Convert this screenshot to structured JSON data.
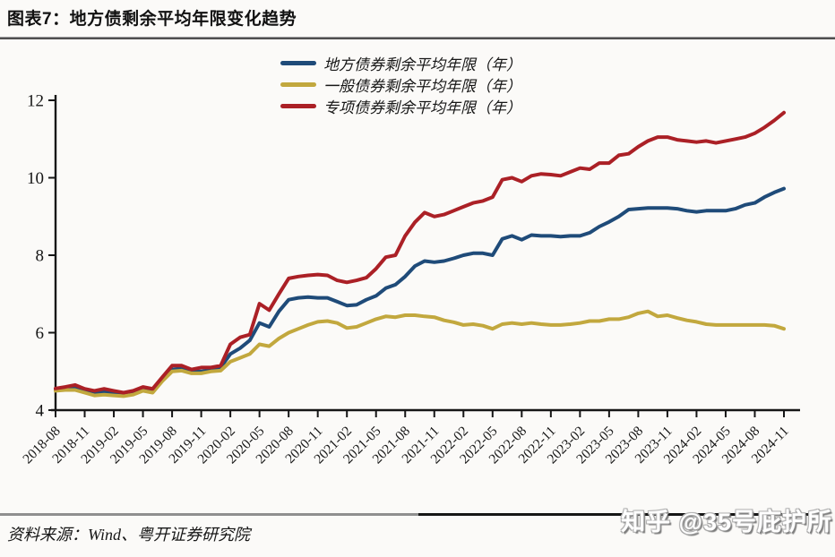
{
  "title": "图表7：地方债剩余平均年限变化趋势",
  "source_note": "资料来源：Wind、粤开证券研究院",
  "watermark": "知乎 @35号庇护所",
  "colors": {
    "series_local_blue": "#1f4b79",
    "series_general_yellow": "#c2a83e",
    "series_special_red": "#ab2026",
    "axis": "#161616",
    "title_rule": "#4f4f4f",
    "bottom_rule_gray": "#8f8f8f",
    "bottom_rule_black": "#161616"
  },
  "chart_data": {
    "type": "line",
    "title": "地方债剩余平均年限变化趋势",
    "xlabel": "",
    "ylabel": "",
    "ylim": [
      4,
      12
    ],
    "yticks": [
      4,
      6,
      8,
      10,
      12
    ],
    "grid": false,
    "legend_position": "top-center",
    "x_start": "2018-08",
    "x_end": "2024-11",
    "x_step_months": 1,
    "x_tick_labels": [
      "2018-08",
      "2018-11",
      "2019-02",
      "2019-05",
      "2019-08",
      "2019-11",
      "2020-02",
      "2020-05",
      "2020-08",
      "2020-11",
      "2021-02",
      "2021-05",
      "2021-08",
      "2021-11",
      "2022-02",
      "2022-05",
      "2022-08",
      "2022-11",
      "2023-02",
      "2023-05",
      "2023-08",
      "2023-11",
      "2024-02",
      "2024-05",
      "2024-08",
      "2024-11"
    ],
    "series": [
      {
        "name": "地方债券剩余平均年限（年）",
        "color": "#1f4b79",
        "values": [
          4.52,
          4.56,
          4.58,
          4.5,
          4.45,
          4.48,
          4.44,
          4.42,
          4.46,
          4.55,
          4.5,
          4.78,
          5.05,
          5.08,
          5.0,
          5.0,
          5.04,
          5.1,
          5.45,
          5.6,
          5.8,
          6.25,
          6.15,
          6.55,
          6.85,
          6.9,
          6.92,
          6.9,
          6.9,
          6.8,
          6.7,
          6.72,
          6.85,
          6.95,
          7.15,
          7.24,
          7.45,
          7.72,
          7.85,
          7.82,
          7.85,
          7.92,
          8.0,
          8.05,
          8.05,
          8.0,
          8.42,
          8.5,
          8.4,
          8.52,
          8.5,
          8.5,
          8.48,
          8.5,
          8.5,
          8.58,
          8.74,
          8.86,
          9.0,
          9.18,
          9.2,
          9.22,
          9.22,
          9.22,
          9.2,
          9.15,
          9.12,
          9.15,
          9.15,
          9.15,
          9.2,
          9.3,
          9.35,
          9.5,
          9.62,
          9.72
        ]
      },
      {
        "name": "一般债券剩余平均年限（年）",
        "color": "#c2a83e",
        "values": [
          4.5,
          4.52,
          4.52,
          4.45,
          4.38,
          4.4,
          4.38,
          4.36,
          4.4,
          4.5,
          4.45,
          4.75,
          5.0,
          5.02,
          4.95,
          4.95,
          5.0,
          5.02,
          5.25,
          5.35,
          5.45,
          5.7,
          5.65,
          5.85,
          6.0,
          6.1,
          6.2,
          6.28,
          6.3,
          6.25,
          6.12,
          6.15,
          6.25,
          6.35,
          6.42,
          6.4,
          6.45,
          6.45,
          6.42,
          6.4,
          6.32,
          6.27,
          6.2,
          6.22,
          6.18,
          6.1,
          6.22,
          6.25,
          6.22,
          6.25,
          6.22,
          6.2,
          6.2,
          6.22,
          6.25,
          6.3,
          6.3,
          6.35,
          6.35,
          6.4,
          6.5,
          6.55,
          6.42,
          6.45,
          6.38,
          6.32,
          6.28,
          6.22,
          6.2,
          6.2,
          6.2,
          6.2,
          6.2,
          6.2,
          6.18,
          6.1
        ]
      },
      {
        "name": "专项债券剩余平均年限（年）",
        "color": "#ab2026",
        "values": [
          4.56,
          4.6,
          4.65,
          4.55,
          4.5,
          4.55,
          4.5,
          4.45,
          4.5,
          4.6,
          4.55,
          4.85,
          5.15,
          5.15,
          5.05,
          5.1,
          5.1,
          5.15,
          5.7,
          5.88,
          5.95,
          6.75,
          6.58,
          7.0,
          7.4,
          7.45,
          7.48,
          7.5,
          7.48,
          7.35,
          7.3,
          7.35,
          7.42,
          7.65,
          7.95,
          8.0,
          8.5,
          8.85,
          9.1,
          9.0,
          9.05,
          9.15,
          9.25,
          9.35,
          9.4,
          9.5,
          9.95,
          10.0,
          9.9,
          10.05,
          10.1,
          10.08,
          10.05,
          10.15,
          10.25,
          10.22,
          10.38,
          10.38,
          10.58,
          10.62,
          10.8,
          10.95,
          11.05,
          11.05,
          10.98,
          10.95,
          10.92,
          10.95,
          10.9,
          10.95,
          11.0,
          11.05,
          11.15,
          11.3,
          11.48,
          11.68
        ]
      }
    ]
  }
}
